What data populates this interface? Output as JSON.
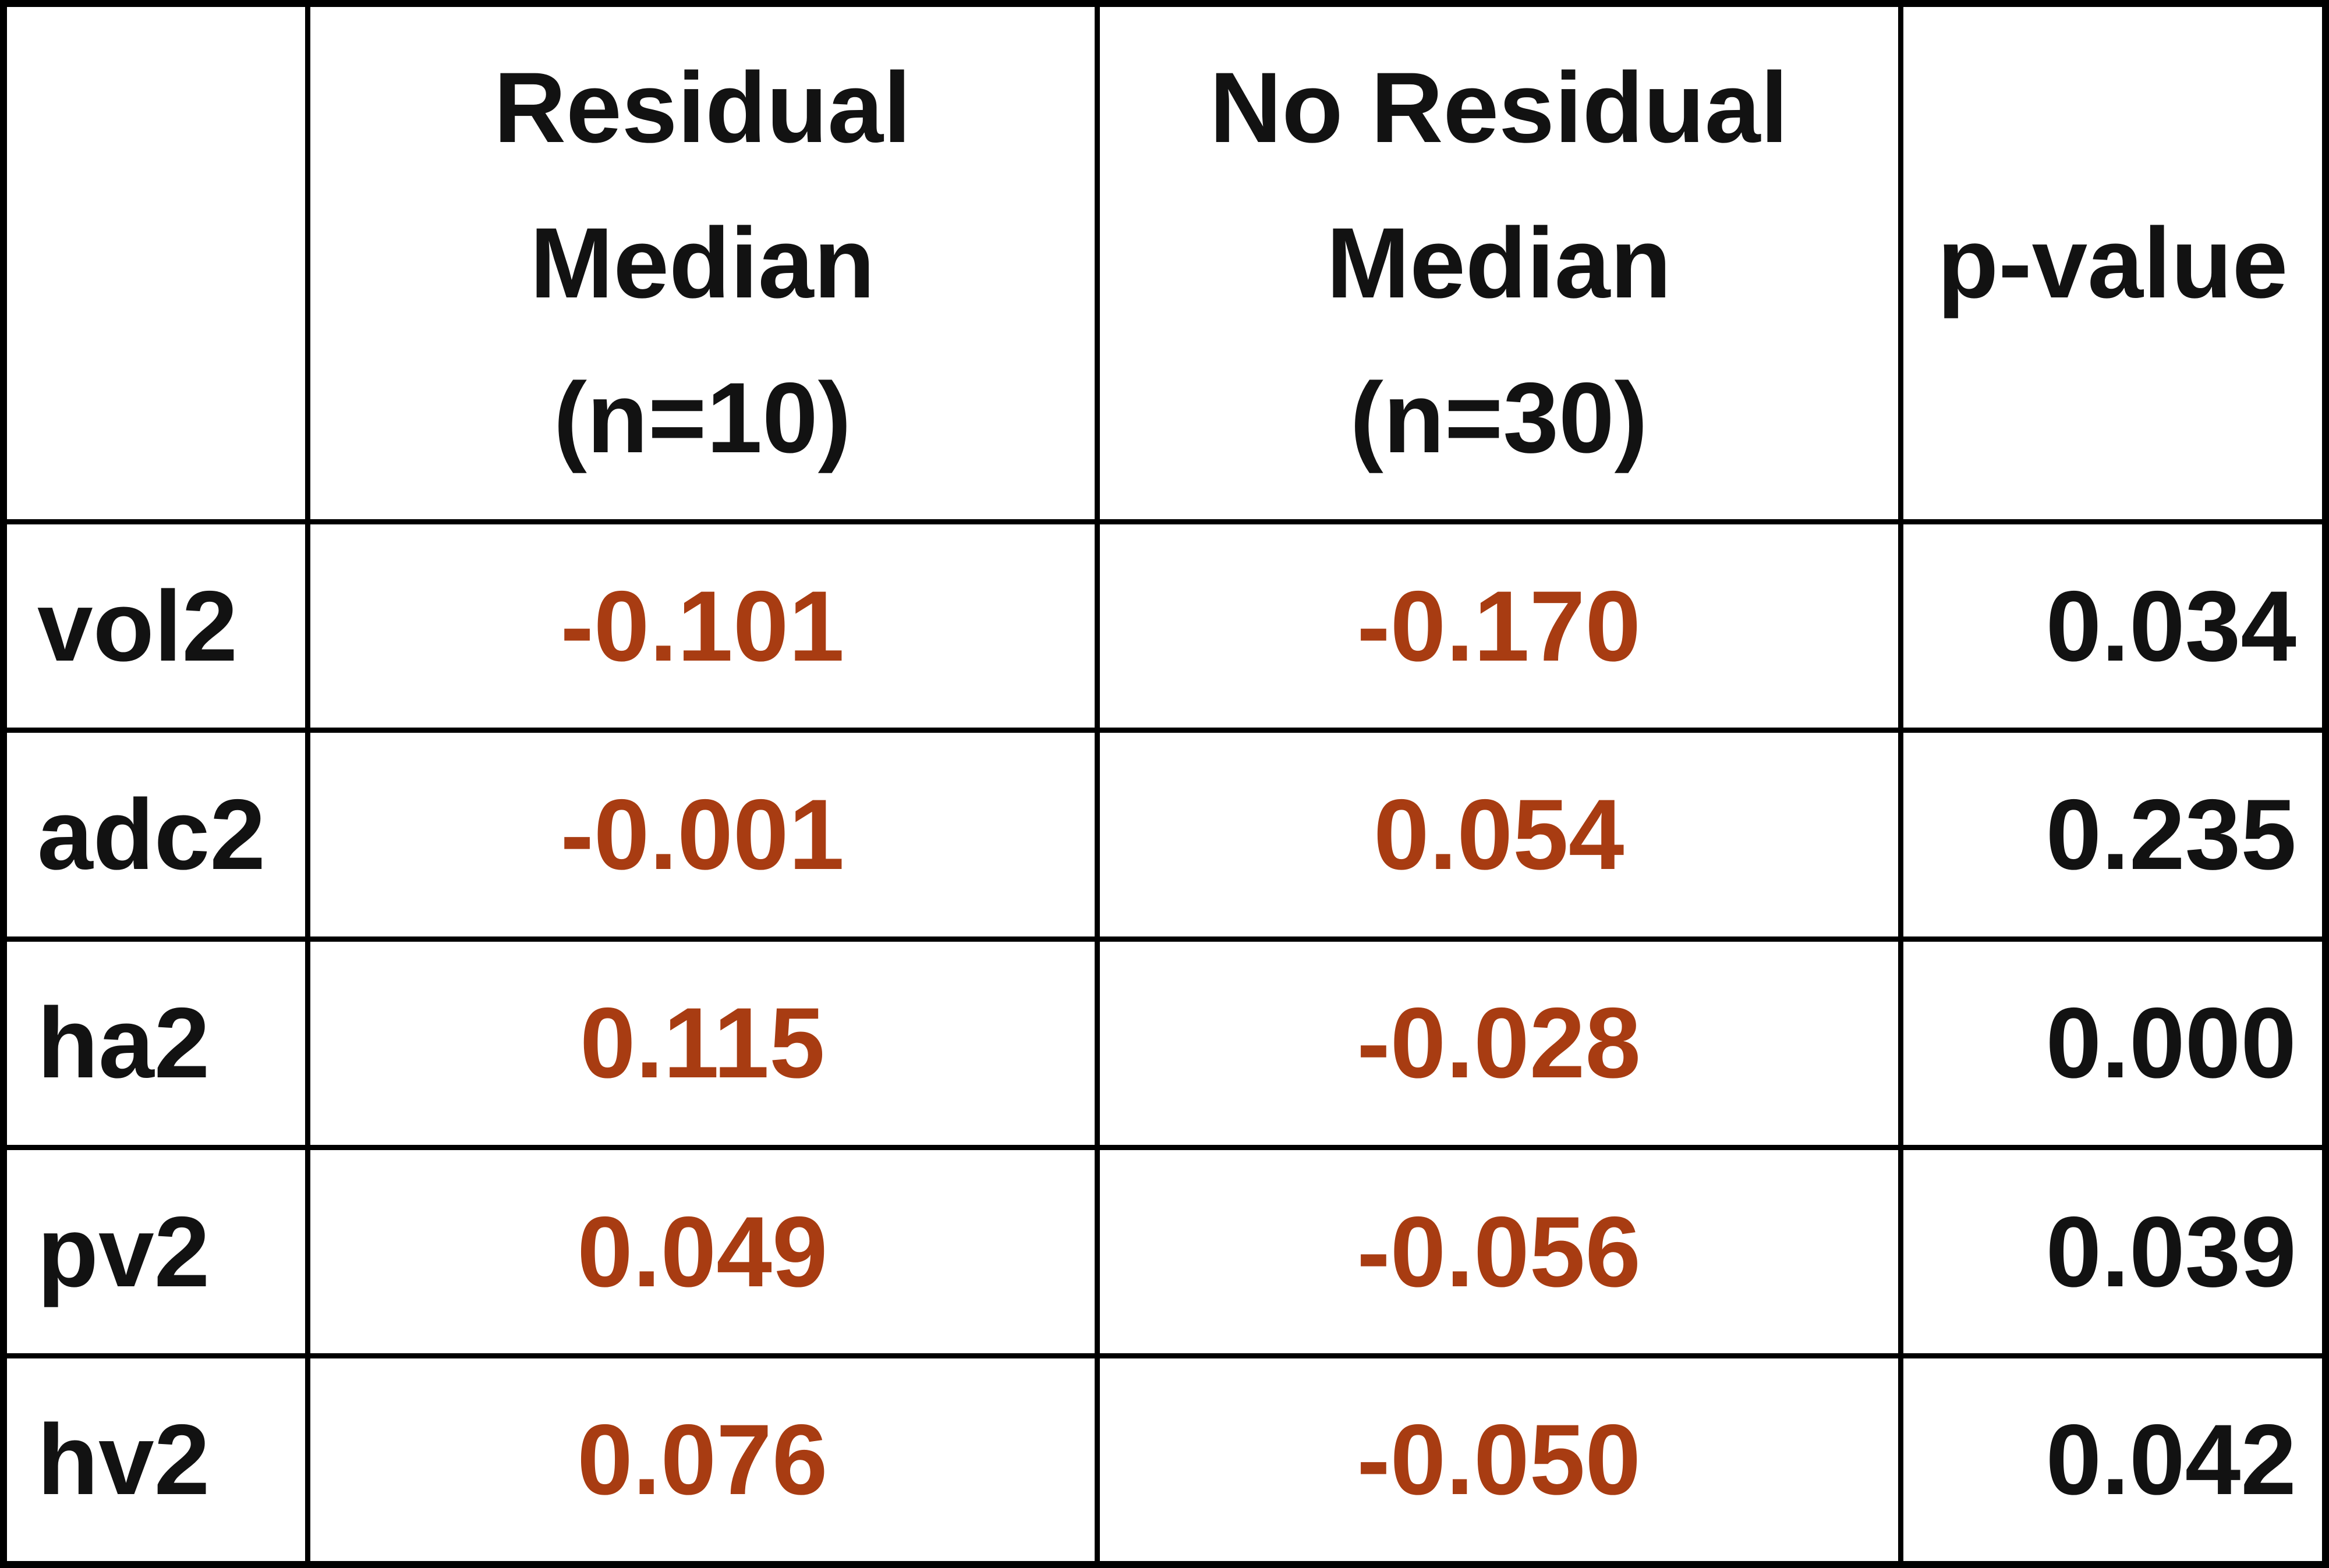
{
  "chart_data": {
    "type": "table",
    "title": "",
    "columns": [
      "",
      "Residual Median (n=10)",
      "No Residual Median (n=30)",
      "p-value"
    ],
    "rows": [
      {
        "label": "vol2",
        "residual_median_n10": "-0.101",
        "no_residual_median_n30": "-0.170",
        "p_value": "0.034"
      },
      {
        "label": "adc2",
        "residual_median_n10": "-0.001",
        "no_residual_median_n30": "0.054",
        "p_value": "0.235"
      },
      {
        "label": "ha2",
        "residual_median_n10": "0.115",
        "no_residual_median_n30": "-0.028",
        "p_value": "0.000"
      },
      {
        "label": "pv2",
        "residual_median_n10": "0.049",
        "no_residual_median_n30": "-0.056",
        "p_value": "0.039"
      },
      {
        "label": "hv2",
        "residual_median_n10": "0.076",
        "no_residual_median_n30": "-0.050",
        "p_value": "0.042"
      }
    ],
    "layout": {
      "grid": "on",
      "header_rows": 1,
      "value_columns_text_color": "#A83C12",
      "p_value_alignment": "right"
    }
  },
  "header": {
    "col1": "",
    "col2_lines": [
      "Residual",
      "Median",
      "(n=10)"
    ],
    "col3_lines": [
      "No Residual",
      "Median",
      "(n=30)"
    ],
    "col4": "p-value"
  },
  "colors": {
    "value_text": "#A83C12",
    "heading_text": "#121212",
    "p_value_text": "#121212",
    "border": "#000000",
    "background": "#ffffff"
  }
}
